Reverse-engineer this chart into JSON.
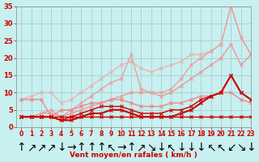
{
  "bg_color": "#c8f0f0",
  "grid_color": "#a8cece",
  "line_color_dark": "#cc0000",
  "title": "Vent moyen/en rafales ( km/h )",
  "xlim": [
    -0.5,
    23
  ],
  "ylim": [
    0,
    35
  ],
  "yticks": [
    0,
    5,
    10,
    15,
    20,
    25,
    30,
    35
  ],
  "xticks": [
    0,
    1,
    2,
    3,
    4,
    5,
    6,
    7,
    8,
    9,
    10,
    11,
    12,
    13,
    14,
    15,
    16,
    17,
    18,
    19,
    20,
    21,
    22,
    23
  ],
  "series": [
    {
      "x": [
        0,
        1,
        2,
        3,
        4,
        5,
        6,
        7,
        8,
        9,
        10,
        11,
        12,
        13,
        14,
        15,
        16,
        17,
        18,
        19,
        20,
        21,
        22,
        23
      ],
      "y": [
        3,
        3,
        3,
        3,
        3,
        3,
        3,
        3,
        3,
        3,
        3,
        3,
        3,
        3,
        3,
        3,
        3,
        3,
        3,
        3,
        3,
        3,
        3,
        3
      ],
      "color": "#cc0000",
      "lw": 1.0,
      "marker": "x",
      "ms": 2.5,
      "zorder": 5
    },
    {
      "x": [
        0,
        1,
        2,
        3,
        4,
        5,
        6,
        7,
        8,
        9,
        10,
        11,
        12,
        13,
        14,
        15,
        16,
        17,
        18,
        19,
        20,
        21,
        22,
        23
      ],
      "y": [
        3,
        3,
        3,
        3,
        2,
        2,
        3,
        4,
        4,
        5,
        5,
        4,
        3,
        3,
        3,
        3,
        4,
        5,
        7,
        9,
        10,
        15,
        10,
        8
      ],
      "color": "#cc0000",
      "lw": 1.5,
      "marker": "x",
      "ms": 2.5,
      "zorder": 5
    },
    {
      "x": [
        0,
        1,
        2,
        3,
        4,
        5,
        6,
        7,
        8,
        9,
        10,
        11,
        12,
        13,
        14,
        15,
        16,
        17,
        18,
        19,
        20,
        21,
        22,
        23
      ],
      "y": [
        3,
        3,
        3,
        3,
        2,
        3,
        4,
        5,
        6,
        6,
        6,
        5,
        4,
        4,
        4,
        5,
        5,
        6,
        8,
        9,
        10,
        15,
        10,
        8
      ],
      "color": "#cc0000",
      "lw": 1.0,
      "marker": "x",
      "ms": 2.5,
      "zorder": 4
    },
    {
      "x": [
        0,
        1,
        2,
        3,
        4,
        5,
        6,
        7,
        8,
        9,
        10,
        11,
        12,
        13,
        14,
        15,
        16,
        17,
        18,
        19,
        20,
        21,
        22,
        23
      ],
      "y": [
        8,
        8,
        8,
        3,
        5,
        5,
        6,
        7,
        7,
        8,
        8,
        7,
        6,
        6,
        6,
        7,
        7,
        8,
        9,
        9,
        10,
        10,
        8,
        7
      ],
      "color": "#ee8888",
      "lw": 1.0,
      "marker": "x",
      "ms": 2.5,
      "zorder": 3
    },
    {
      "x": [
        0,
        1,
        2,
        3,
        4,
        5,
        6,
        7,
        8,
        9,
        10,
        11,
        12,
        13,
        14,
        15,
        16,
        17,
        18,
        19,
        20,
        21,
        22,
        23
      ],
      "y": [
        3,
        3,
        4,
        4,
        3,
        4,
        5,
        6,
        7,
        8,
        9,
        10,
        10,
        10,
        9,
        10,
        12,
        14,
        16,
        18,
        20,
        24,
        18,
        21
      ],
      "color": "#ee9999",
      "lw": 1.0,
      "marker": "x",
      "ms": 2.5,
      "zorder": 2
    },
    {
      "x": [
        0,
        1,
        2,
        3,
        4,
        5,
        6,
        7,
        8,
        9,
        10,
        11,
        12,
        13,
        14,
        15,
        16,
        17,
        18,
        19,
        20,
        21,
        22,
        23
      ],
      "y": [
        3,
        3,
        4,
        5,
        3,
        5,
        7,
        9,
        11,
        13,
        14,
        21,
        11,
        10,
        10,
        11,
        14,
        18,
        20,
        22,
        24,
        35,
        26,
        21
      ],
      "color": "#eaa0a0",
      "lw": 1.0,
      "marker": "x",
      "ms": 2.5,
      "zorder": 2
    },
    {
      "x": [
        0,
        1,
        2,
        3,
        4,
        5,
        6,
        7,
        8,
        9,
        10,
        11,
        12,
        13,
        14,
        15,
        16,
        17,
        18,
        19,
        20,
        21,
        22,
        23
      ],
      "y": [
        8,
        9,
        10,
        10,
        7,
        8,
        10,
        12,
        14,
        16,
        18,
        19,
        17,
        16,
        17,
        18,
        19,
        21,
        21,
        22,
        24,
        35,
        26,
        21
      ],
      "color": "#f0b0b0",
      "lw": 1.0,
      "marker": "x",
      "ms": 2.5,
      "zorder": 1
    }
  ],
  "wind_dirs": [
    "↑",
    "↗",
    "↗",
    "↗",
    "↓",
    "→",
    "↑",
    "↑",
    "↑",
    "↖",
    "→",
    "↑",
    "↗",
    "↘",
    "↓",
    "↖",
    "↓",
    "↓",
    "↓",
    "↖",
    "↖",
    "↙",
    "↘",
    "↓"
  ]
}
